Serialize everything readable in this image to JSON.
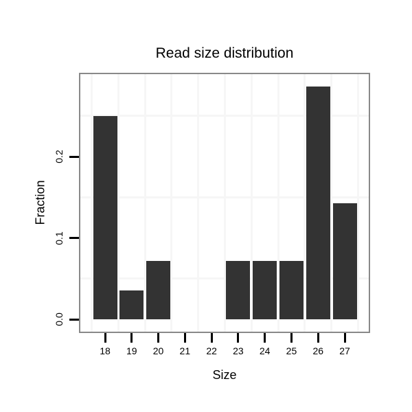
{
  "chart_data": {
    "type": "bar",
    "title": "Read size distribution",
    "xlabel": "Size",
    "ylabel": "Fraction",
    "categories": [
      "18",
      "19",
      "20",
      "21",
      "22",
      "23",
      "24",
      "25",
      "26",
      "27"
    ],
    "values": [
      0.25,
      0.0357,
      0.0714,
      0,
      0,
      0.0714,
      0.0714,
      0.0714,
      0.2857,
      0.1429
    ],
    "y_tick_labels": [
      "0.0",
      "0.1",
      "0.2"
    ],
    "y_tick_values": [
      0.0,
      0.1,
      0.2
    ],
    "ylim": [
      -0.015,
      0.301
    ],
    "y_minor_gridlines": [
      0.05,
      0.15,
      0.25
    ],
    "x_minor_gridline_offsets": [
      -0.5,
      0.5,
      1.5,
      2.5,
      3.5,
      4.5,
      5.5,
      6.5,
      7.5,
      8.5,
      9.5
    ],
    "grid": "minor-only",
    "legend": "none",
    "colors": {
      "bar": "#333333",
      "panel_border": "#898989",
      "gridline": "#f6f6f6",
      "text": "#000000",
      "background": "#ffffff"
    }
  }
}
